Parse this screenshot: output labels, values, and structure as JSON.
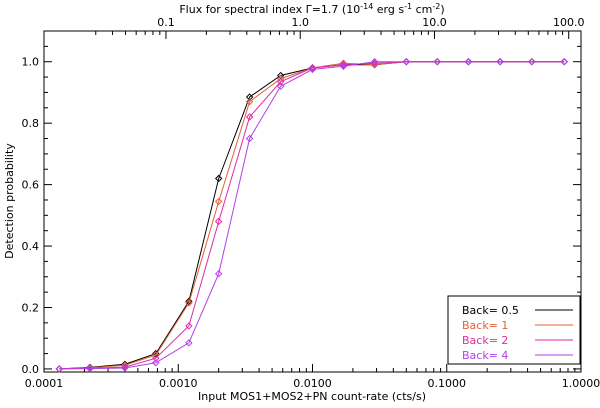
{
  "chart_data": {
    "type": "line",
    "title": "",
    "xlabel": "Input MOS1+MOS2+PN count-rate (cts/s)",
    "ylabel": "Detection probability",
    "top_axis_label": {
      "prefix": "Flux for spectral index ",
      "gamma": "Γ",
      "index": "=1.7 (10",
      "exp1": "-14",
      "unit1": " erg s",
      "exp2": "-1",
      "unit2": " cm",
      "exp3": "-2",
      "suffix": ")"
    },
    "x_scale": "log",
    "xlim": [
      0.0001,
      1.0
    ],
    "ylim": [
      -0.01,
      1.1
    ],
    "x_ticks": [
      0.0001,
      0.001,
      0.01,
      0.1,
      1.0
    ],
    "x_tick_labels": [
      "0.0001",
      "0.0010",
      "0.0100",
      "0.1000",
      "1.0000"
    ],
    "y_ticks": [
      0.0,
      0.2,
      0.4,
      0.6,
      0.8,
      1.0
    ],
    "y_tick_labels": [
      "0.0",
      "0.2",
      "0.4",
      "0.6",
      "0.8",
      "1.0"
    ],
    "top_ticks_flux": [
      0.1,
      1.0,
      10.0,
      100.0
    ],
    "top_tick_labels": [
      "0.1",
      "1.0",
      "10.0",
      "100.0"
    ],
    "top_ticks_count_rate": [
      0.00081,
      0.0081,
      0.081,
      0.81
    ],
    "grid": false,
    "legend_position": "bottom-right",
    "x": [
      0.00013,
      0.00022,
      0.0004,
      0.00068,
      0.0012,
      0.002,
      0.0034,
      0.0058,
      0.01,
      0.017,
      0.029,
      0.05,
      0.085,
      0.145,
      0.25,
      0.43,
      0.75
    ],
    "series": [
      {
        "name": "Back= 0.5",
        "color": "#000000",
        "values": [
          0.0,
          0.005,
          0.015,
          0.05,
          0.22,
          0.62,
          0.885,
          0.955,
          0.98,
          0.99,
          0.99,
          1.0,
          1.0,
          1.0,
          1.0,
          1.0,
          1.0
        ]
      },
      {
        "name": "Back= 1",
        "color": "#e0603a",
        "values": [
          0.0,
          0.004,
          0.012,
          0.045,
          0.215,
          0.545,
          0.87,
          0.945,
          0.98,
          0.995,
          0.99,
          1.0,
          1.0,
          1.0,
          1.0,
          1.0,
          1.0
        ]
      },
      {
        "name": "Back= 2",
        "color": "#e22aa0",
        "values": [
          0.0,
          0.002,
          0.006,
          0.035,
          0.14,
          0.48,
          0.82,
          0.935,
          0.98,
          0.99,
          0.995,
          1.0,
          1.0,
          1.0,
          1.0,
          1.0,
          1.0
        ]
      },
      {
        "name": "Back= 4",
        "color": "#b040e8",
        "values": [
          0.0,
          0.001,
          0.003,
          0.02,
          0.085,
          0.31,
          0.75,
          0.92,
          0.975,
          0.985,
          1.0,
          1.0,
          1.0,
          1.0,
          1.0,
          1.0,
          1.0
        ]
      }
    ]
  }
}
